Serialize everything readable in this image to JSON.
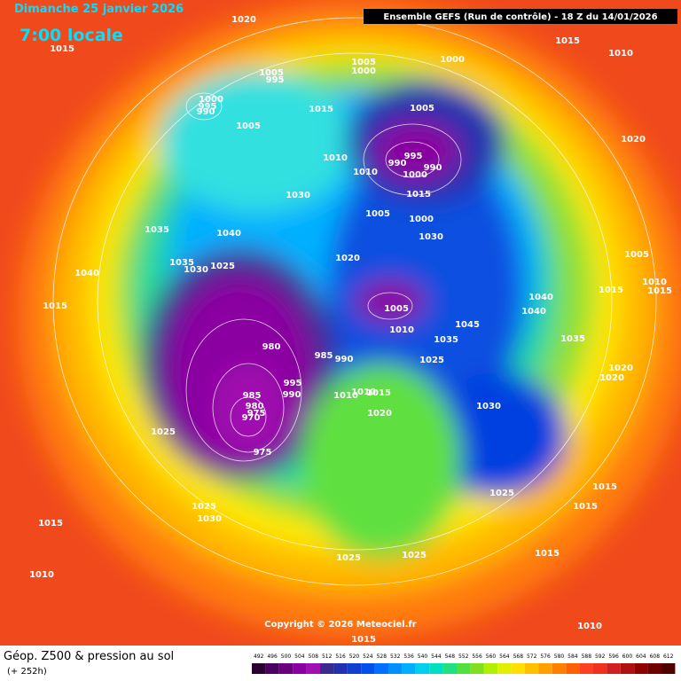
{
  "header": {
    "date": "Dimanche 25 janvier 2026",
    "time": "7:00 locale",
    "run": "Ensemble GEFS  (Run de contrôle)  -  18 Z du 14/01/2026",
    "copyright": "Copyright © 2026 Meteociel.fr"
  },
  "footer": {
    "title": "Géop. Z500 & pression au sol",
    "lead": "(+ 252h)"
  },
  "legend": {
    "scale": [
      492,
      496,
      500,
      504,
      508,
      512,
      516,
      520,
      524,
      528,
      532,
      536,
      540,
      544,
      548,
      552,
      556,
      560,
      564,
      568,
      572,
      576,
      580,
      584,
      588,
      592,
      596,
      600,
      604,
      608,
      612
    ],
    "colors": [
      "#2b0030",
      "#4a0060",
      "#6a0080",
      "#8a00a0",
      "#a010b0",
      "#3a2a90",
      "#2030b0",
      "#1040d0",
      "#0050f0",
      "#0070ff",
      "#0090ff",
      "#00b0ff",
      "#00d0f0",
      "#00e0c0",
      "#20e080",
      "#50e040",
      "#80e020",
      "#b0f000",
      "#e0f000",
      "#ffe000",
      "#ffc000",
      "#ffa000",
      "#ff8000",
      "#ff6000",
      "#ff4020",
      "#f03020",
      "#d02020",
      "#b01010",
      "#900000",
      "#700000",
      "#500000"
    ]
  },
  "isobars": [
    "1020",
    "1015",
    "1015",
    "1010",
    "1005",
    "995",
    "1005",
    "1000",
    "1000",
    "1000",
    "995",
    "990",
    "1005",
    "1015",
    "1005",
    "995",
    "990",
    "990",
    "1000",
    "1015",
    "1010",
    "1010",
    "1020",
    "1030",
    "1005",
    "1000",
    "1030",
    "1035",
    "1040",
    "1020",
    "1005",
    "1035",
    "1030",
    "1025",
    "1040",
    "1015",
    "1010",
    "1015",
    "1015",
    "1040",
    "1040",
    "1005",
    "1010",
    "1035",
    "1045",
    "1035",
    "980",
    "985",
    "990",
    "1025",
    "1020",
    "1020",
    "995",
    "990",
    "985",
    "1010",
    "1010",
    "1015",
    "980",
    "975",
    "970",
    "1030",
    "1020",
    "1025",
    "975",
    "1025",
    "1015",
    "1015",
    "1025",
    "1030",
    "1015",
    "1025",
    "1025",
    "1015",
    "1010",
    "1010",
    "1015"
  ]
}
